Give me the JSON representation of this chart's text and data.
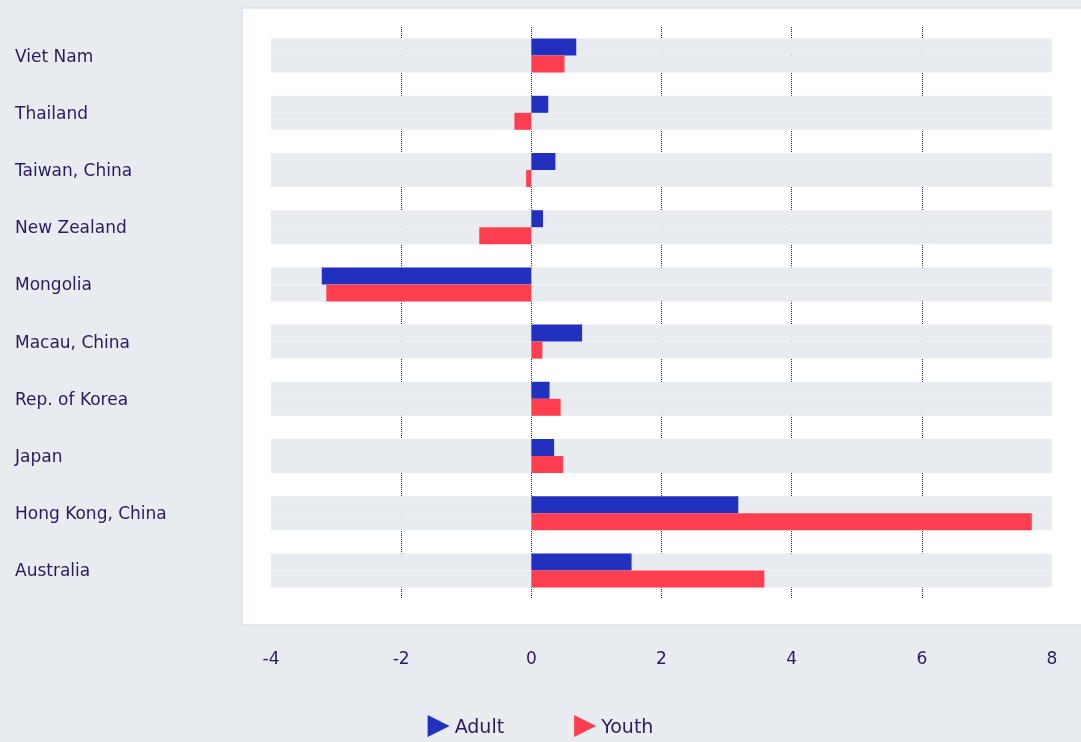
{
  "chart_data": {
    "type": "bar",
    "orientation": "horizontal",
    "categories": [
      "Viet Nam",
      "Thailand",
      "Taiwan, China",
      "New Zealand",
      "Mongolia",
      "Macau, China",
      "Rep. of Korea",
      "Japan",
      "Hong Kong, China",
      "Australia"
    ],
    "series": [
      {
        "name": "Adult",
        "color": "#2230c0",
        "values": [
          0.69,
          0.26,
          0.37,
          0.18,
          -3.22,
          0.78,
          0.28,
          0.35,
          3.18,
          1.54
        ]
      },
      {
        "name": "Youth",
        "color": "#ff3f4f",
        "values": [
          0.51,
          -0.26,
          -0.08,
          -0.8,
          -3.15,
          0.17,
          0.45,
          0.49,
          7.69,
          3.58
        ]
      }
    ],
    "xlim": [
      -4,
      8
    ],
    "xticks": [
      -4,
      -2,
      0,
      2,
      4,
      6,
      8
    ],
    "grid": "x",
    "legend": "bottom"
  }
}
